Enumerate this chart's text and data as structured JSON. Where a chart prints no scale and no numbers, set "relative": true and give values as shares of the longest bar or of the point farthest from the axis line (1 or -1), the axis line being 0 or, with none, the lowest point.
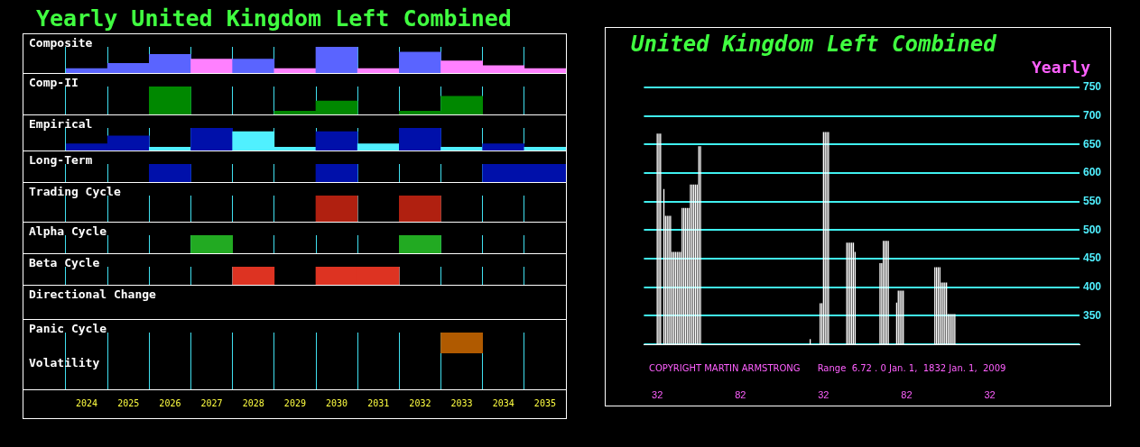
{
  "chart_data": [
    {
      "type": "other",
      "title": "Yearly United Kingdom Left Combined"
    },
    {
      "type": "bar",
      "title": "Composite",
      "relative": true,
      "categories": [
        "2024",
        "2025",
        "2026",
        "2027",
        "2028",
        "2029",
        "2030",
        "2031",
        "2032",
        "2033",
        "2034",
        "2035"
      ],
      "values": [
        0.17,
        0.37,
        0.71,
        0.53,
        0.53,
        0.17,
        1,
        0.17,
        0.8,
        0.46,
        0.28,
        0.17
      ],
      "colors": [
        "#5a64ff",
        "#5a64ff",
        "#5a64ff",
        "#ff80ff",
        "#5a64ff",
        "#ff80ff",
        "#5a64ff",
        "#ff80ff",
        "#5a64ff",
        "#ff80ff",
        "#ff80ff",
        "#ff80ff"
      ],
      "grid": "x",
      "tick_labels": false
    },
    {
      "type": "bar",
      "title": "Comp-II",
      "relative": true,
      "categories": [
        "2024",
        "2025",
        "2026",
        "2027",
        "2028",
        "2029",
        "2030",
        "2031",
        "2032",
        "2033",
        "2034",
        "2035"
      ],
      "values": [
        null,
        null,
        1,
        null,
        null,
        0.12,
        0.48,
        null,
        0.12,
        0.65,
        null,
        null
      ],
      "color": "#008800",
      "grid": "x",
      "tick_labels": false
    },
    {
      "type": "bar",
      "title": "Empirical",
      "relative": true,
      "categories": [
        "2024",
        "2025",
        "2026",
        "2027",
        "2028",
        "2029",
        "2030",
        "2031",
        "2032",
        "2033",
        "2034",
        "2035"
      ],
      "values": [
        0.3,
        0.65,
        0.15,
        1,
        0.84,
        0.15,
        0.84,
        0.3,
        1,
        0.15,
        0.3,
        0.15
      ],
      "colors": [
        "#0010aa",
        "#0010aa",
        "#50f0ff",
        "#0010aa",
        "#50f0ff",
        "#50f0ff",
        "#0010aa",
        "#50f0ff",
        "#0010aa",
        "#50f0ff",
        "#0010aa",
        "#50f0ff"
      ],
      "grid": "x",
      "tick_labels": false
    },
    {
      "type": "bar",
      "title": "Long-Term",
      "relative": true,
      "categories": [
        "2024",
        "2025",
        "2026",
        "2027",
        "2028",
        "2029",
        "2030",
        "2031",
        "2032",
        "2033",
        "2034",
        "2035"
      ],
      "values": [
        null,
        null,
        1,
        null,
        null,
        null,
        1,
        null,
        null,
        null,
        1,
        1
      ],
      "color": "#0010aa",
      "grid": "x",
      "tick_labels": false
    },
    {
      "type": "bar",
      "title": "Trading Cycle",
      "relative": true,
      "categories": [
        "2024",
        "2025",
        "2026",
        "2027",
        "2028",
        "2029",
        "2030",
        "2031",
        "2032",
        "2033",
        "2034",
        "2035"
      ],
      "values": [
        null,
        null,
        null,
        null,
        null,
        null,
        1,
        null,
        1,
        null,
        null,
        null
      ],
      "color": "#b02010",
      "grid": "x",
      "tick_labels": false
    },
    {
      "type": "bar",
      "title": "Alpha Cycle",
      "relative": true,
      "categories": [
        "2024",
        "2025",
        "2026",
        "2027",
        "2028",
        "2029",
        "2030",
        "2031",
        "2032",
        "2033",
        "2034",
        "2035"
      ],
      "values": [
        null,
        null,
        null,
        1,
        null,
        null,
        null,
        null,
        1,
        null,
        null,
        null
      ],
      "color": "#22aa22",
      "grid": "x",
      "tick_labels": false
    },
    {
      "type": "bar",
      "title": "Beta Cycle",
      "relative": true,
      "categories": [
        "2024",
        "2025",
        "2026",
        "2027",
        "2028",
        "2029",
        "2030",
        "2031",
        "2032",
        "2033",
        "2034",
        "2035"
      ],
      "values": [
        null,
        null,
        null,
        null,
        1,
        null,
        1,
        1,
        null,
        null,
        null,
        null
      ],
      "color": "#dd3322",
      "grid": "x",
      "tick_labels": false
    },
    {
      "type": "other",
      "title": "Directional Change"
    },
    {
      "type": "bar",
      "title": "Panic Cycle",
      "relative": true,
      "categories": [
        "2024",
        "2025",
        "2026",
        "2027",
        "2028",
        "2029",
        "2030",
        "2031",
        "2032",
        "2033",
        "2034",
        "2035"
      ],
      "values": [
        null,
        null,
        null,
        null,
        null,
        null,
        null,
        null,
        null,
        1,
        null,
        null
      ],
      "color": "#b05a00",
      "grid": "x",
      "tick_labels": "x"
    },
    {
      "type": "other",
      "title": "Volatility"
    },
    {
      "type": "bar",
      "title": "United Kingdom Left Combined",
      "subtitle": "Yearly",
      "annotations": [
        "COPYRIGHT MARTIN ARMSTRONG      Range  6.72 . 0 Jan. 1,  1832 Jan. 1,  2009"
      ],
      "x": [
        1832,
        1833,
        1834,
        1836,
        1837,
        1838,
        1839,
        1840,
        1841,
        1842,
        1843,
        1844,
        1845,
        1846,
        1847,
        1848,
        1849,
        1850,
        1851,
        1852,
        1853,
        1854,
        1855,
        1856,
        1857,
        1858,
        1924,
        1930,
        1931,
        1932,
        1933,
        1934,
        1935,
        1946,
        1947,
        1948,
        1949,
        1950,
        1951,
        1966,
        1967,
        1968,
        1969,
        1970,
        1971,
        1976,
        1977,
        1978,
        1979,
        1980,
        1999,
        2000,
        2001,
        2002,
        2003,
        2004,
        2005,
        2006,
        2007,
        2008,
        2009,
        2010,
        2011
      ],
      "values": [
        669,
        669,
        669,
        572,
        525,
        525,
        525,
        525,
        462,
        462,
        462,
        462,
        462,
        462,
        539,
        539,
        539,
        539,
        539,
        580,
        580,
        580,
        580,
        580,
        647,
        647,
        309,
        372,
        372,
        672,
        672,
        672,
        672,
        478,
        478,
        478,
        478,
        478,
        462,
        442,
        442,
        481,
        481,
        481,
        481,
        373,
        394,
        394,
        394,
        394,
        435,
        435,
        435,
        435,
        408,
        408,
        408,
        408,
        353,
        353,
        353,
        353,
        353
      ],
      "color": "#ffffff",
      "xlim": [
        1824,
        2086
      ],
      "xticks": [
        {
          "value": 1832,
          "label": "32"
        },
        {
          "value": 1882,
          "label": "82"
        },
        {
          "value": 1932,
          "label": "32"
        },
        {
          "value": 1982,
          "label": "82"
        },
        {
          "value": 2032,
          "label": "32"
        }
      ],
      "ylim": [
        300,
        750
      ],
      "yticks": [
        {
          "value": 300,
          "label": null
        },
        350,
        400,
        450,
        500,
        550,
        600,
        650,
        700,
        750
      ],
      "grid": "y"
    }
  ]
}
